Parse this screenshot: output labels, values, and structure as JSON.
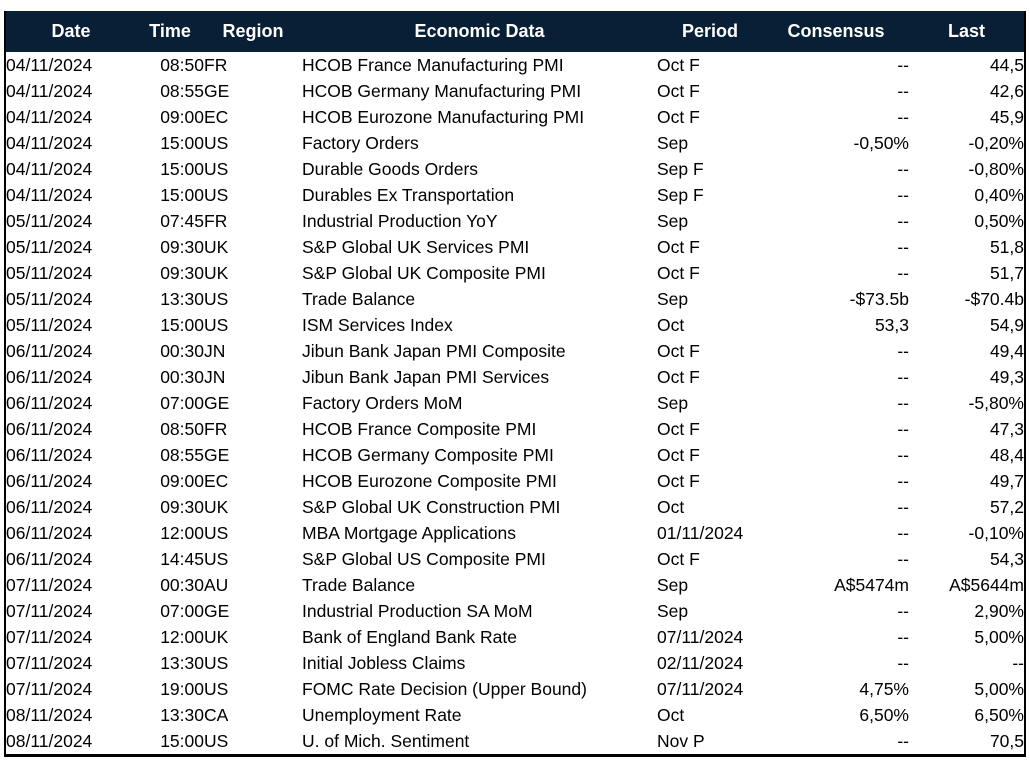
{
  "chart_data": {
    "type": "table",
    "columns": [
      "Date",
      "Time",
      "Region",
      "Economic Data",
      "Period",
      "Consensus",
      "Last"
    ],
    "rows": [
      [
        "04/11/2024",
        "08:50",
        "FR",
        "HCOB France Manufacturing PMI",
        "Oct F",
        "--",
        "44,5"
      ],
      [
        "04/11/2024",
        "08:55",
        "GE",
        "HCOB Germany Manufacturing PMI",
        "Oct F",
        "--",
        "42,6"
      ],
      [
        "04/11/2024",
        "09:00",
        "EC",
        "HCOB Eurozone Manufacturing PMI",
        "Oct F",
        "--",
        "45,9"
      ],
      [
        "04/11/2024",
        "15:00",
        "US",
        "Factory Orders",
        "Sep",
        "-0,50%",
        "-0,20%"
      ],
      [
        "04/11/2024",
        "15:00",
        "US",
        "Durable Goods Orders",
        "Sep F",
        "--",
        "-0,80%"
      ],
      [
        "04/11/2024",
        "15:00",
        "US",
        "Durables Ex Transportation",
        "Sep F",
        "--",
        "0,40%"
      ],
      [
        "05/11/2024",
        "07:45",
        "FR",
        "Industrial Production YoY",
        "Sep",
        "--",
        "0,50%"
      ],
      [
        "05/11/2024",
        "09:30",
        "UK",
        "S&P Global UK Services PMI",
        "Oct F",
        "--",
        "51,8"
      ],
      [
        "05/11/2024",
        "09:30",
        "UK",
        "S&P Global UK Composite PMI",
        "Oct F",
        "--",
        "51,7"
      ],
      [
        "05/11/2024",
        "13:30",
        "US",
        "Trade Balance",
        "Sep",
        "-$73.5b",
        "-$70.4b"
      ],
      [
        "05/11/2024",
        "15:00",
        "US",
        "ISM Services Index",
        "Oct",
        "53,3",
        "54,9"
      ],
      [
        "06/11/2024",
        "00:30",
        "JN",
        "Jibun Bank Japan PMI Composite",
        "Oct F",
        "--",
        "49,4"
      ],
      [
        "06/11/2024",
        "00:30",
        "JN",
        "Jibun Bank Japan PMI Services",
        "Oct F",
        "--",
        "49,3"
      ],
      [
        "06/11/2024",
        "07:00",
        "GE",
        "Factory Orders MoM",
        "Sep",
        "--",
        "-5,80%"
      ],
      [
        "06/11/2024",
        "08:50",
        "FR",
        "HCOB France Composite PMI",
        "Oct F",
        "--",
        "47,3"
      ],
      [
        "06/11/2024",
        "08:55",
        "GE",
        "HCOB Germany Composite PMI",
        "Oct F",
        "--",
        "48,4"
      ],
      [
        "06/11/2024",
        "09:00",
        "EC",
        "HCOB Eurozone Composite PMI",
        "Oct F",
        "--",
        "49,7"
      ],
      [
        "06/11/2024",
        "09:30",
        "UK",
        "S&P Global UK Construction PMI",
        "Oct",
        "--",
        "57,2"
      ],
      [
        "06/11/2024",
        "12:00",
        "US",
        "MBA Mortgage Applications",
        "01/11/2024",
        "--",
        "-0,10%"
      ],
      [
        "06/11/2024",
        "14:45",
        "US",
        "S&P Global US Composite PMI",
        "Oct F",
        "--",
        "54,3"
      ],
      [
        "07/11/2024",
        "00:30",
        "AU",
        "Trade Balance",
        "Sep",
        "A$5474m",
        "A$5644m"
      ],
      [
        "07/11/2024",
        "07:00",
        "GE",
        "Industrial Production SA MoM",
        "Sep",
        "--",
        "2,90%"
      ],
      [
        "07/11/2024",
        "12:00",
        "UK",
        "Bank of England Bank Rate",
        "07/11/2024",
        "--",
        "5,00%"
      ],
      [
        "07/11/2024",
        "13:30",
        "US",
        "Initial Jobless Claims",
        "02/11/2024",
        "--",
        "--"
      ],
      [
        "07/11/2024",
        "19:00",
        "US",
        "FOMC Rate Decision (Upper Bound)",
        "07/11/2024",
        "4,75%",
        "5,00%"
      ],
      [
        "08/11/2024",
        "13:30",
        "CA",
        "Unemployment Rate",
        "Oct",
        "6,50%",
        "6,50%"
      ],
      [
        "08/11/2024",
        "15:00",
        "US",
        "U. of Mich. Sentiment",
        "Nov P",
        "--",
        "70,5"
      ]
    ],
    "layout": {
      "grid": "outer-border-only",
      "header_alignment": "center",
      "legend": "none"
    }
  },
  "colors": {
    "header_bg": "#081F36",
    "header_text": "#FFFFFF",
    "body_text": "#000000",
    "border": "#000000",
    "body_bg": "#FFFFFF"
  }
}
